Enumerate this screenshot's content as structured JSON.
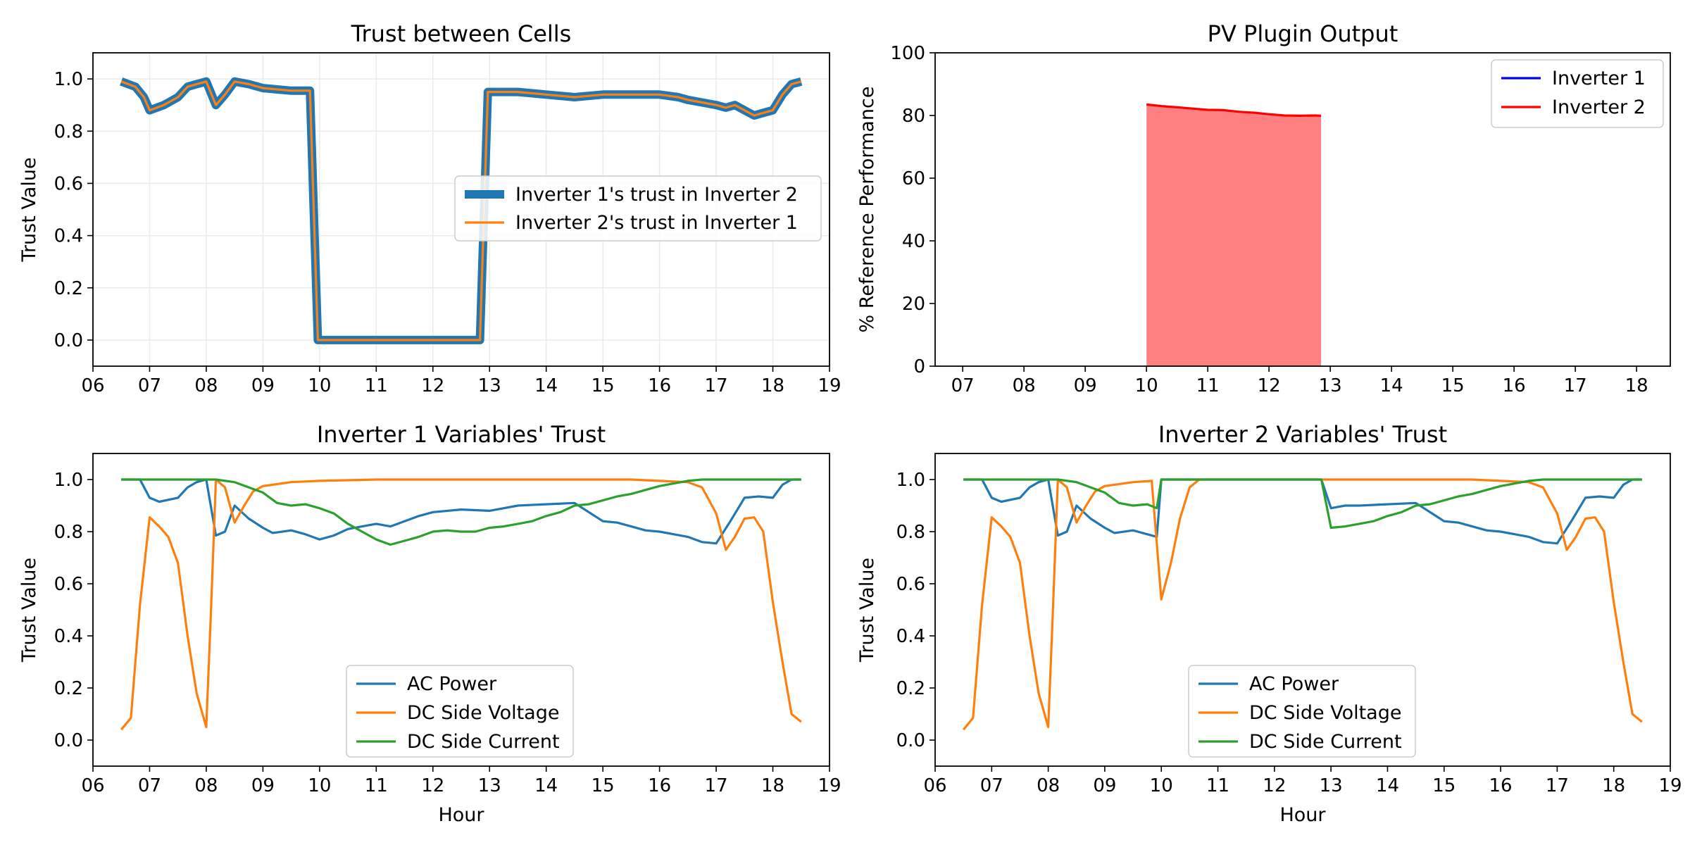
{
  "chart_data": [
    {
      "type": "line",
      "title": "Trust between Cells",
      "xlabel": "",
      "ylabel": "Trust Value",
      "xlim": [
        6.0,
        19.0
      ],
      "ylim": [
        -0.1,
        1.1
      ],
      "xticks": [
        6,
        7,
        8,
        9,
        10,
        11,
        12,
        13,
        14,
        15,
        16,
        17,
        18,
        19
      ],
      "xtick_labels": [
        "06",
        "07",
        "08",
        "09",
        "10",
        "11",
        "12",
        "13",
        "14",
        "15",
        "16",
        "17",
        "18",
        "19"
      ],
      "yticks": [
        0,
        0.2,
        0.4,
        0.6,
        0.8,
        1.0
      ],
      "ytick_labels": [
        "0.0",
        "0.2",
        "0.4",
        "0.6",
        "0.8",
        "1.0"
      ],
      "grid": true,
      "legend": "center-right",
      "series": [
        {
          "name": "Inverter 1's trust in Inverter 2",
          "color": "#1f77b4",
          "style": "thick",
          "x": [
            6.5,
            6.75,
            6.9,
            7.0,
            7.25,
            7.5,
            7.67,
            7.83,
            8.0,
            8.17,
            8.33,
            8.5,
            8.75,
            9.0,
            9.5,
            9.83,
            9.97,
            10.0,
            11.0,
            12.0,
            12.83,
            12.97,
            13.0,
            13.5,
            14.0,
            14.5,
            15.0,
            15.5,
            16.0,
            16.33,
            16.5,
            16.75,
            17.0,
            17.17,
            17.33,
            17.5,
            17.67,
            17.83,
            18.0,
            18.17,
            18.33,
            18.5
          ],
          "y": [
            0.99,
            0.97,
            0.93,
            0.88,
            0.9,
            0.93,
            0.97,
            0.98,
            0.99,
            0.9,
            0.94,
            0.99,
            0.98,
            0.965,
            0.955,
            0.955,
            0.0,
            0.0,
            0.0,
            0.0,
            0.0,
            0.95,
            0.95,
            0.95,
            0.94,
            0.93,
            0.94,
            0.94,
            0.94,
            0.93,
            0.92,
            0.91,
            0.9,
            0.89,
            0.9,
            0.88,
            0.86,
            0.87,
            0.88,
            0.94,
            0.98,
            0.99
          ]
        },
        {
          "name": "Inverter 2's trust in Inverter 1",
          "color": "#ff7f0e",
          "style": "thin",
          "x": [
            6.5,
            6.75,
            6.9,
            7.0,
            7.25,
            7.5,
            7.67,
            7.83,
            8.0,
            8.17,
            8.33,
            8.5,
            8.75,
            9.0,
            9.5,
            9.83,
            9.97,
            10.0,
            11.0,
            12.0,
            12.83,
            12.97,
            13.0,
            13.5,
            14.0,
            14.5,
            15.0,
            15.5,
            16.0,
            16.33,
            16.5,
            16.75,
            17.0,
            17.17,
            17.33,
            17.5,
            17.67,
            17.83,
            18.0,
            18.17,
            18.33,
            18.5
          ],
          "y": [
            0.99,
            0.97,
            0.93,
            0.88,
            0.9,
            0.93,
            0.97,
            0.98,
            0.99,
            0.9,
            0.94,
            0.99,
            0.98,
            0.965,
            0.955,
            0.955,
            0.0,
            0.0,
            0.0,
            0.0,
            0.0,
            0.95,
            0.95,
            0.95,
            0.94,
            0.93,
            0.94,
            0.94,
            0.94,
            0.93,
            0.92,
            0.91,
            0.9,
            0.89,
            0.9,
            0.88,
            0.86,
            0.87,
            0.88,
            0.94,
            0.98,
            0.99
          ]
        }
      ]
    },
    {
      "type": "area",
      "title": "PV Plugin Output",
      "xlabel": "",
      "ylabel": "% Reference Performance",
      "xlim": [
        6.55,
        18.55
      ],
      "ylim": [
        0,
        100
      ],
      "xticks": [
        7,
        8,
        9,
        10,
        11,
        12,
        13,
        14,
        15,
        16,
        17,
        18
      ],
      "xtick_labels": [
        "07",
        "08",
        "09",
        "10",
        "11",
        "12",
        "13",
        "14",
        "15",
        "16",
        "17",
        "18"
      ],
      "yticks": [
        0,
        20,
        40,
        60,
        80,
        100
      ],
      "ytick_labels": [
        "0",
        "20",
        "40",
        "60",
        "80",
        "100"
      ],
      "grid": false,
      "legend": "top-right",
      "series": [
        {
          "name": "Inverter 1",
          "color": "#0000ff",
          "x": [],
          "y": []
        },
        {
          "name": "Inverter 2",
          "color": "#ff0000",
          "fill": "#ff8080",
          "x": [
            10.0,
            10.25,
            10.5,
            10.75,
            11.0,
            11.25,
            11.5,
            11.75,
            12.0,
            12.25,
            12.5,
            12.75,
            12.85
          ],
          "y": [
            83.5,
            83.0,
            82.6,
            82.2,
            81.8,
            81.7,
            81.2,
            80.9,
            80.4,
            80.0,
            79.9,
            80.0,
            79.9
          ]
        }
      ]
    },
    {
      "type": "line",
      "title": "Inverter 1 Variables' Trust",
      "xlabel": "Hour",
      "ylabel": "Trust Value",
      "xlim": [
        6.0,
        19.0
      ],
      "ylim": [
        -0.1,
        1.1
      ],
      "xticks": [
        6,
        7,
        8,
        9,
        10,
        11,
        12,
        13,
        14,
        15,
        16,
        17,
        18,
        19
      ],
      "xtick_labels": [
        "06",
        "07",
        "08",
        "09",
        "10",
        "11",
        "12",
        "13",
        "14",
        "15",
        "16",
        "17",
        "18",
        "19"
      ],
      "yticks": [
        0,
        0.2,
        0.4,
        0.6,
        0.8,
        1.0
      ],
      "ytick_labels": [
        "0.0",
        "0.2",
        "0.4",
        "0.6",
        "0.8",
        "1.0"
      ],
      "grid": false,
      "legend": "bottom-center",
      "series": [
        {
          "name": "AC Power",
          "color": "#1f77b4",
          "x": [
            6.5,
            6.83,
            7.0,
            7.17,
            7.5,
            7.67,
            7.83,
            8.0,
            8.17,
            8.33,
            8.5,
            8.75,
            9.0,
            9.17,
            9.5,
            9.75,
            10.0,
            10.25,
            10.5,
            10.75,
            11.0,
            11.25,
            11.5,
            11.75,
            12.0,
            12.5,
            13.0,
            13.5,
            14.0,
            14.5,
            15.0,
            15.25,
            15.5,
            15.75,
            16.0,
            16.25,
            16.5,
            16.75,
            17.0,
            17.25,
            17.5,
            17.75,
            18.0,
            18.17,
            18.33,
            18.5
          ],
          "y": [
            1.0,
            1.0,
            0.93,
            0.915,
            0.93,
            0.97,
            0.99,
            1.0,
            0.785,
            0.8,
            0.9,
            0.85,
            0.815,
            0.795,
            0.805,
            0.79,
            0.77,
            0.785,
            0.81,
            0.82,
            0.83,
            0.82,
            0.84,
            0.86,
            0.875,
            0.885,
            0.88,
            0.9,
            0.905,
            0.91,
            0.84,
            0.835,
            0.82,
            0.805,
            0.8,
            0.79,
            0.78,
            0.76,
            0.755,
            0.84,
            0.93,
            0.935,
            0.93,
            0.98,
            1.0,
            1.0
          ]
        },
        {
          "name": "DC Side Voltage",
          "color": "#ff7f0e",
          "x": [
            6.5,
            6.67,
            6.83,
            7.0,
            7.17,
            7.33,
            7.5,
            7.67,
            7.83,
            8.0,
            8.08,
            8.17,
            8.33,
            8.5,
            8.67,
            8.83,
            9.0,
            9.5,
            10.0,
            11.0,
            12.0,
            13.0,
            14.0,
            15.0,
            15.5,
            16.0,
            16.5,
            16.75,
            17.0,
            17.17,
            17.33,
            17.5,
            17.67,
            17.83,
            18.0,
            18.17,
            18.33,
            18.5
          ],
          "y": [
            0.04,
            0.085,
            0.52,
            0.855,
            0.82,
            0.78,
            0.68,
            0.4,
            0.18,
            0.05,
            0.48,
            1.0,
            0.97,
            0.835,
            0.9,
            0.955,
            0.975,
            0.99,
            0.995,
            1.0,
            1.0,
            1.0,
            1.0,
            1.0,
            1.0,
            0.995,
            0.99,
            0.97,
            0.87,
            0.73,
            0.78,
            0.85,
            0.855,
            0.8,
            0.53,
            0.3,
            0.1,
            0.07
          ]
        },
        {
          "name": "DC Side Current",
          "color": "#2ca02c",
          "x": [
            6.5,
            8.17,
            8.5,
            8.75,
            9.0,
            9.25,
            9.5,
            9.75,
            10.0,
            10.25,
            10.5,
            10.75,
            11.0,
            11.25,
            11.5,
            11.75,
            12.0,
            12.25,
            12.5,
            12.75,
            13.0,
            13.25,
            13.5,
            13.75,
            14.0,
            14.25,
            14.5,
            14.75,
            15.0,
            15.25,
            15.5,
            15.75,
            16.0,
            16.25,
            16.5,
            16.75,
            17.0,
            17.5,
            18.0,
            18.5
          ],
          "y": [
            1.0,
            1.0,
            0.99,
            0.97,
            0.95,
            0.91,
            0.9,
            0.905,
            0.89,
            0.87,
            0.83,
            0.8,
            0.77,
            0.75,
            0.765,
            0.78,
            0.8,
            0.805,
            0.8,
            0.8,
            0.815,
            0.82,
            0.83,
            0.84,
            0.86,
            0.875,
            0.9,
            0.905,
            0.92,
            0.935,
            0.945,
            0.96,
            0.975,
            0.985,
            0.995,
            1.0,
            1.0,
            1.0,
            1.0,
            1.0
          ]
        }
      ]
    },
    {
      "type": "line",
      "title": "Inverter 2 Variables' Trust",
      "xlabel": "Hour",
      "ylabel": "Trust Value",
      "xlim": [
        6.0,
        19.0
      ],
      "ylim": [
        -0.1,
        1.1
      ],
      "xticks": [
        6,
        7,
        8,
        9,
        10,
        11,
        12,
        13,
        14,
        15,
        16,
        17,
        18,
        19
      ],
      "xtick_labels": [
        "06",
        "07",
        "08",
        "09",
        "10",
        "11",
        "12",
        "13",
        "14",
        "15",
        "16",
        "17",
        "18",
        "19"
      ],
      "yticks": [
        0,
        0.2,
        0.4,
        0.6,
        0.8,
        1.0
      ],
      "ytick_labels": [
        "0.0",
        "0.2",
        "0.4",
        "0.6",
        "0.8",
        "1.0"
      ],
      "grid": false,
      "legend": "bottom-center",
      "series": [
        {
          "name": "AC Power",
          "color": "#1f77b4",
          "x": [
            6.5,
            6.83,
            7.0,
            7.17,
            7.5,
            7.67,
            7.83,
            8.0,
            8.17,
            8.33,
            8.5,
            8.75,
            9.0,
            9.17,
            9.5,
            9.75,
            9.92,
            10.0,
            11.0,
            12.0,
            12.83,
            13.0,
            13.25,
            13.5,
            14.0,
            14.5,
            15.0,
            15.25,
            15.5,
            15.75,
            16.0,
            16.25,
            16.5,
            16.75,
            17.0,
            17.25,
            17.5,
            17.75,
            18.0,
            18.17,
            18.33,
            18.5
          ],
          "y": [
            1.0,
            1.0,
            0.93,
            0.915,
            0.93,
            0.97,
            0.99,
            1.0,
            0.785,
            0.8,
            0.9,
            0.85,
            0.815,
            0.795,
            0.805,
            0.79,
            0.78,
            1.0,
            1.0,
            1.0,
            1.0,
            0.89,
            0.9,
            0.9,
            0.905,
            0.91,
            0.84,
            0.835,
            0.82,
            0.805,
            0.8,
            0.79,
            0.78,
            0.76,
            0.755,
            0.84,
            0.93,
            0.935,
            0.93,
            0.98,
            1.0,
            1.0
          ]
        },
        {
          "name": "DC Side Voltage",
          "color": "#ff7f0e",
          "x": [
            6.5,
            6.67,
            6.83,
            7.0,
            7.17,
            7.33,
            7.5,
            7.67,
            7.83,
            8.0,
            8.08,
            8.17,
            8.33,
            8.5,
            8.67,
            8.83,
            9.0,
            9.5,
            9.83,
            10.0,
            10.17,
            10.33,
            10.5,
            10.67,
            11.0,
            12.0,
            13.0,
            14.0,
            15.0,
            15.5,
            16.0,
            16.5,
            16.75,
            17.0,
            17.17,
            17.33,
            17.5,
            17.67,
            17.83,
            18.0,
            18.17,
            18.33,
            18.5
          ],
          "y": [
            0.04,
            0.085,
            0.52,
            0.855,
            0.82,
            0.78,
            0.68,
            0.4,
            0.18,
            0.05,
            0.48,
            1.0,
            0.97,
            0.835,
            0.9,
            0.955,
            0.975,
            0.99,
            0.995,
            0.54,
            0.68,
            0.85,
            0.97,
            1.0,
            1.0,
            1.0,
            1.0,
            1.0,
            1.0,
            1.0,
            0.995,
            0.99,
            0.97,
            0.87,
            0.73,
            0.78,
            0.85,
            0.855,
            0.8,
            0.53,
            0.3,
            0.1,
            0.07
          ]
        },
        {
          "name": "DC Side Current",
          "color": "#2ca02c",
          "x": [
            6.5,
            8.17,
            8.5,
            8.75,
            9.0,
            9.25,
            9.5,
            9.75,
            9.92,
            10.0,
            11.0,
            12.0,
            12.83,
            13.0,
            13.25,
            13.5,
            13.75,
            14.0,
            14.25,
            14.5,
            14.75,
            15.0,
            15.25,
            15.5,
            15.75,
            16.0,
            16.25,
            16.5,
            16.75,
            17.0,
            17.5,
            18.0,
            18.5
          ],
          "y": [
            1.0,
            1.0,
            0.99,
            0.97,
            0.95,
            0.91,
            0.9,
            0.905,
            0.89,
            1.0,
            1.0,
            1.0,
            1.0,
            0.815,
            0.82,
            0.83,
            0.84,
            0.86,
            0.875,
            0.9,
            0.905,
            0.92,
            0.935,
            0.945,
            0.96,
            0.975,
            0.985,
            0.995,
            1.0,
            1.0,
            1.0,
            1.0,
            1.0
          ]
        }
      ]
    }
  ]
}
